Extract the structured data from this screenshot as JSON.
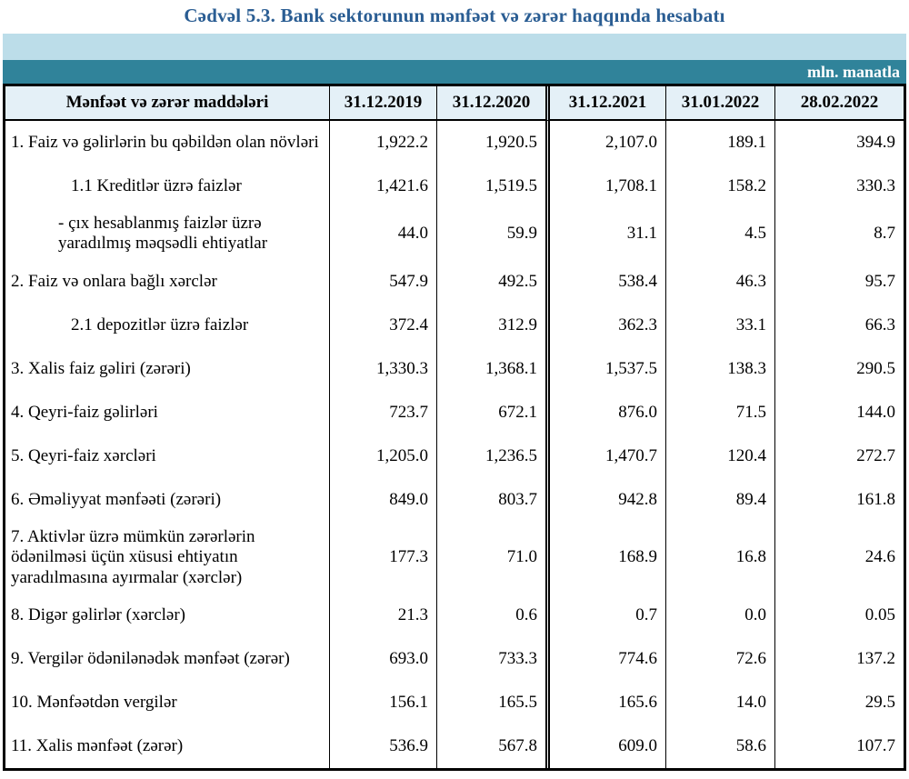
{
  "title": "Cədvəl 5.3. Bank sektorunun mənfəət və zərər haqqında hesabatı",
  "unit_label": "mln. manatla",
  "colors": {
    "title_blue": "#2a5d93",
    "band_light": "#bcdde9",
    "band_teal": "#30839a",
    "header_bg": "#e4f0f7",
    "border": "#000000"
  },
  "table": {
    "header": [
      "Mənfəət və zərər maddələri",
      "31.12.2019",
      "31.12.2020",
      "31.12.2021",
      "31.01.2022",
      "28.02.2022"
    ],
    "rows": [
      {
        "label": "1. Faiz və gəlirlərin bu qəbildən olan növləri",
        "indent": 0,
        "values": [
          "1,922.2",
          "1,920.5",
          "2,107.0",
          "189.1",
          "394.9"
        ]
      },
      {
        "label": "1.1 Kreditlər üzrə faizlər",
        "indent": 1,
        "values": [
          "1,421.6",
          "1,519.5",
          "1,708.1",
          "158.2",
          "330.3"
        ]
      },
      {
        "label": "-  çıx hesablanmış faizlər üzrə yaradılmış məqsədli ehtiyatlar",
        "indent": 2,
        "values": [
          "44.0",
          "59.9",
          "31.1",
          "4.5",
          "8.7"
        ]
      },
      {
        "label": "2. Faiz və onlara bağlı xərclər",
        "indent": 0,
        "values": [
          "547.9",
          "492.5",
          "538.4",
          "46.3",
          "95.7"
        ]
      },
      {
        "label": "2.1 depozitlər üzrə faizlər",
        "indent": 1,
        "values": [
          "372.4",
          "312.9",
          "362.3",
          "33.1",
          "66.3"
        ]
      },
      {
        "label": "3. Xalis faiz gəliri (zərəri)",
        "indent": 0,
        "values": [
          "1,330.3",
          "1,368.1",
          "1,537.5",
          "138.3",
          "290.5"
        ]
      },
      {
        "label": "4. Qeyri-faiz gəlirləri",
        "indent": 0,
        "values": [
          "723.7",
          "672.1",
          "876.0",
          "71.5",
          "144.0"
        ]
      },
      {
        "label": "5. Qeyri-faiz xərcləri",
        "indent": 0,
        "values": [
          "1,205.0",
          "1,236.5",
          "1,470.7",
          "120.4",
          "272.7"
        ]
      },
      {
        "label": "6. Əməliyyat mənfəəti (zərəri)",
        "indent": 0,
        "values": [
          "849.0",
          "803.7",
          "942.8",
          "89.4",
          "161.8"
        ]
      },
      {
        "label": "7. Aktivlər üzrə mümkün zərərlərin ödənilməsi üçün xüsusi ehtiyatın yaradılmasına ayırmalar (xərclər)",
        "indent": 0,
        "values": [
          "177.3",
          "71.0",
          "168.9",
          "16.8",
          "24.6"
        ]
      },
      {
        "label": "8. Digər gəlirlər (xərclər)",
        "indent": 0,
        "values": [
          "21.3",
          "0.6",
          "0.7",
          "0.0",
          "0.05"
        ]
      },
      {
        "label": "9. Vergilər ödənilənədək mənfəət (zərər)",
        "indent": 0,
        "values": [
          "693.0",
          "733.3",
          "774.6",
          "72.6",
          "137.2"
        ]
      },
      {
        "label": "10. Mənfəətdən vergilər",
        "indent": 0,
        "values": [
          "156.1",
          "165.5",
          "165.6",
          "14.0",
          "29.5"
        ]
      },
      {
        "label": "11. Xalis mənfəət (zərər)",
        "indent": 0,
        "values": [
          "536.9",
          "567.8",
          "609.0",
          "58.6",
          "107.7"
        ]
      }
    ]
  }
}
